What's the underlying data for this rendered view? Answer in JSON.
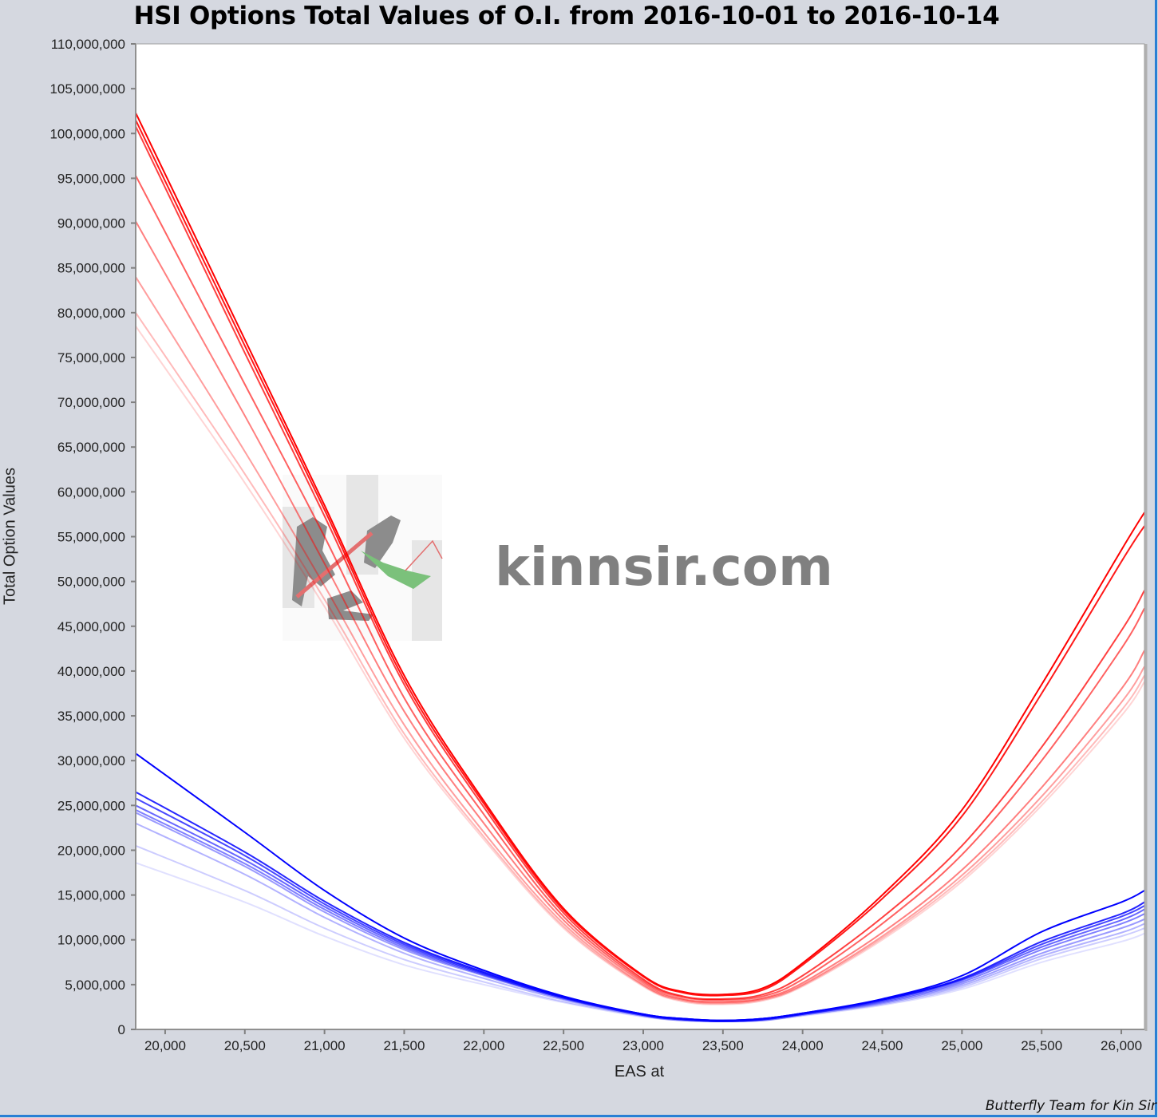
{
  "chart_data": {
    "type": "line",
    "title": "HSI Options Total Values of O.I. from 2016-10-01 to 2016-10-14",
    "xlabel": "EAS at",
    "ylabel": "Total Option Values",
    "xlim": [
      19815,
      26145
    ],
    "ylim": [
      0,
      110000000
    ],
    "grid": false,
    "legend": "none",
    "x_ticks": [
      "20,000",
      "20,500",
      "21,000",
      "21,500",
      "22,000",
      "22,500",
      "23,000",
      "23,500",
      "24,000",
      "24,500",
      "25,000",
      "25,500",
      "26,000"
    ],
    "x_tick_values": [
      20000,
      20500,
      21000,
      21500,
      22000,
      22500,
      23000,
      23500,
      24000,
      24500,
      25000,
      25500,
      26000
    ],
    "y_ticks": [
      "0",
      "5,000,000",
      "10,000,000",
      "15,000,000",
      "20,000,000",
      "25,000,000",
      "30,000,000",
      "35,000,000",
      "40,000,000",
      "45,000,000",
      "50,000,000",
      "55,000,000",
      "60,000,000",
      "65,000,000",
      "70,000,000",
      "75,000,000",
      "80,000,000",
      "85,000,000",
      "90,000,000",
      "95,000,000",
      "100,000,000",
      "105,000,000",
      "110,000,000"
    ],
    "y_tick_values": [
      0,
      5000000,
      10000000,
      15000000,
      20000000,
      25000000,
      30000000,
      35000000,
      40000000,
      45000000,
      50000000,
      55000000,
      60000000,
      65000000,
      70000000,
      75000000,
      80000000,
      85000000,
      90000000,
      95000000,
      100000000,
      105000000,
      110000000
    ],
    "x": [
      19815,
      20500,
      21000,
      21500,
      22000,
      22500,
      23000,
      23250,
      23500,
      23750,
      24000,
      24500,
      25000,
      25500,
      26000,
      26145
    ],
    "series": [
      {
        "color": "#ff0000",
        "opacity": 1.0,
        "values": [
          102300000,
          77000000,
          58500000,
          39500000,
          25500000,
          13500000,
          6000000,
          4200000,
          3900000,
          4600000,
          7400000,
          15000000,
          24500000,
          38500000,
          53500000,
          57700000
        ]
      },
      {
        "color": "#ff0000",
        "opacity": 0.9,
        "values": [
          101500000,
          76300000,
          58000000,
          39000000,
          25200000,
          13300000,
          5900000,
          4100000,
          3800000,
          4400000,
          7200000,
          14600000,
          23800000,
          37500000,
          52200000,
          56200000
        ]
      },
      {
        "color": "#ff0000",
        "opacity": 0.75,
        "values": [
          100800000,
          75500000,
          57300000,
          38500000,
          24800000,
          13000000,
          5600000,
          3700000,
          3400000,
          3900000,
          6000000,
          12500000,
          20500000,
          31500000,
          44500000,
          49000000
        ]
      },
      {
        "color": "#ff0000",
        "opacity": 0.62,
        "values": [
          95300000,
          72000000,
          55000000,
          37000000,
          24000000,
          12600000,
          5400000,
          3600000,
          3300000,
          3700000,
          5600000,
          11800000,
          19500000,
          30000000,
          42500000,
          47000000
        ]
      },
      {
        "color": "#ff0000",
        "opacity": 0.5,
        "values": [
          90200000,
          68500000,
          52000000,
          35500000,
          23000000,
          12200000,
          5200000,
          3400000,
          3100000,
          3500000,
          5200000,
          10800000,
          17800000,
          27000000,
          38000000,
          42300000
        ]
      },
      {
        "color": "#ff0000",
        "opacity": 0.38,
        "values": [
          84000000,
          64500000,
          49500000,
          34000000,
          22000000,
          11800000,
          5000000,
          3300000,
          3000000,
          3400000,
          5000000,
          10400000,
          17200000,
          26000000,
          36500000,
          40500000
        ]
      },
      {
        "color": "#ff0000",
        "opacity": 0.27,
        "values": [
          80000000,
          62000000,
          48000000,
          33000000,
          21500000,
          11500000,
          4900000,
          3200000,
          2900000,
          3300000,
          4900000,
          10200000,
          16800000,
          25400000,
          35600000,
          39500000
        ]
      },
      {
        "color": "#ff0000",
        "opacity": 0.17,
        "values": [
          78500000,
          61000000,
          47200000,
          32500000,
          21200000,
          11300000,
          4800000,
          3100000,
          2800000,
          3200000,
          4800000,
          10000000,
          16500000,
          25000000,
          35000000,
          38800000
        ]
      },
      {
        "color": "#0000ff",
        "opacity": 1.0,
        "values": [
          30800000,
          22000000,
          15500000,
          10200000,
          6600000,
          3700000,
          1700000,
          1200000,
          1000000,
          1200000,
          1800000,
          3400000,
          6000000,
          10900000,
          14200000,
          15500000
        ]
      },
      {
        "color": "#0000ff",
        "opacity": 0.85,
        "values": [
          26500000,
          19800000,
          14300000,
          9700000,
          6400000,
          3600000,
          1700000,
          1200000,
          1000000,
          1200000,
          1800000,
          3300000,
          5700000,
          9800000,
          12900000,
          14200000
        ]
      },
      {
        "color": "#0000ff",
        "opacity": 0.72,
        "values": [
          25800000,
          19400000,
          14000000,
          9500000,
          6300000,
          3600000,
          1700000,
          1200000,
          1000000,
          1200000,
          1800000,
          3300000,
          5600000,
          9500000,
          12600000,
          13800000
        ]
      },
      {
        "color": "#0000ff",
        "opacity": 0.6,
        "values": [
          25000000,
          18900000,
          13700000,
          9300000,
          6200000,
          3500000,
          1600000,
          1100000,
          900000,
          1100000,
          1700000,
          3200000,
          5500000,
          9200000,
          12200000,
          13400000
        ]
      },
      {
        "color": "#0000ff",
        "opacity": 0.5,
        "values": [
          24500000,
          18500000,
          13400000,
          9100000,
          6100000,
          3500000,
          1600000,
          1100000,
          900000,
          1100000,
          1700000,
          3100000,
          5300000,
          8900000,
          11800000,
          12900000
        ]
      },
      {
        "color": "#0000ff",
        "opacity": 0.4,
        "values": [
          24200000,
          18200000,
          13100000,
          8900000,
          6000000,
          3400000,
          1600000,
          1100000,
          900000,
          1100000,
          1700000,
          3000000,
          5100000,
          8500000,
          11300000,
          12300000
        ]
      },
      {
        "color": "#0000ff",
        "opacity": 0.3,
        "values": [
          23000000,
          17300000,
          12500000,
          8500000,
          5700000,
          3300000,
          1500000,
          1000000,
          900000,
          1000000,
          1600000,
          2900000,
          4900000,
          8200000,
          10800000,
          11800000
        ]
      },
      {
        "color": "#0000ff",
        "opacity": 0.2,
        "values": [
          20500000,
          15500000,
          11300000,
          7800000,
          5300000,
          3100000,
          1500000,
          1000000,
          900000,
          1000000,
          1600000,
          2800000,
          4700000,
          7900000,
          10400000,
          11300000
        ]
      },
      {
        "color": "#0000ff",
        "opacity": 0.12,
        "values": [
          18600000,
          14200000,
          10400000,
          7200000,
          5000000,
          3000000,
          1400000,
          1000000,
          900000,
          1000000,
          1500000,
          2700000,
          4500000,
          7500000,
          9800000,
          10700000
        ]
      }
    ]
  },
  "watermark": {
    "text": "kinnsir.com"
  },
  "footer": {
    "credit": "Butterfly Team for Kin Sir"
  },
  "colors": {
    "background": "#d5d8e0",
    "border": "#2a7fd4",
    "calls": "#ff0000",
    "puts": "#0000ff"
  }
}
